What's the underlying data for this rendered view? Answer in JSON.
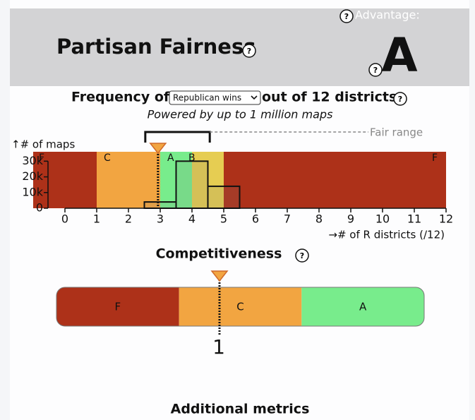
{
  "help_icon": "?",
  "header": {
    "title": "Partisan Fairness",
    "advantage_label": "Advantage:",
    "grade": "A"
  },
  "frequency": {
    "title_prefix": "Frequency of",
    "select_option": "Republican wins",
    "title_suffix": "out of 12 districts",
    "subtitle": "Powered by up to 1 million maps",
    "chart": {
      "type": "histogram",
      "y_label": "↑# of maps",
      "x_label": "→# of R districts (/12)",
      "xlim": [
        -1,
        12
      ],
      "ylim": [
        0,
        36000
      ],
      "xticks": [
        0,
        1,
        2,
        3,
        4,
        5,
        6,
        7,
        8,
        9,
        10,
        11,
        12
      ],
      "yticks": [
        {
          "value": 0,
          "label": "0"
        },
        {
          "value": 10000,
          "label": "10k"
        },
        {
          "value": 20000,
          "label": "20k"
        },
        {
          "value": 30000,
          "label": "30k"
        }
      ],
      "bands": [
        {
          "label": "F",
          "from": -1,
          "to": 1,
          "color": "#ad3119"
        },
        {
          "label": "C",
          "from": 1,
          "to": 3,
          "color": "#f2a541"
        },
        {
          "label": "A",
          "from": 3,
          "to": 4,
          "color": "#78ec8c"
        },
        {
          "label": "B",
          "from": 4,
          "to": 5,
          "color": "#e6cd52"
        },
        {
          "label": "F",
          "from": 5,
          "to": 12,
          "color": "#ad3119"
        }
      ],
      "bins": [
        2.5,
        3.5,
        4.5,
        5.5
      ],
      "counts": [
        4000,
        30000,
        14000
      ],
      "marker": 2.93,
      "fair_range": {
        "label": "Fair range",
        "from": 2.53,
        "to": 4.56
      }
    }
  },
  "competitiveness": {
    "title": "Competitiveness",
    "segments": [
      {
        "label": "F",
        "color": "#ad3119"
      },
      {
        "label": "C",
        "color": "#f2a541"
      },
      {
        "label": "A",
        "color": "#78ec8c"
      }
    ],
    "marker_label": "1"
  },
  "additional_title": "Additional metrics"
}
